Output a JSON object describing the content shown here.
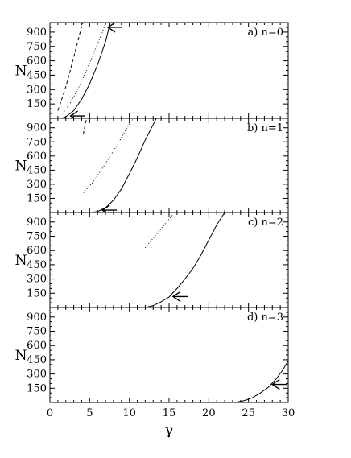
{
  "chart_data": {
    "type": "line",
    "x_axis": {
      "label": "γ",
      "range": [
        0,
        30
      ],
      "ticks": [
        0,
        5,
        10,
        15,
        20,
        25,
        30
      ]
    },
    "panels": [
      {
        "label": "a) n=0",
        "ylabel": "N",
        "y_range": [
          0,
          1000
        ],
        "y_ticks": [
          150,
          300,
          450,
          600,
          750,
          900
        ],
        "series": [
          {
            "style": "dashed",
            "points": [
              [
                1.0,
                80
              ],
              [
                1.5,
                200
              ],
              [
                2.0,
                330
              ],
              [
                2.5,
                480
              ],
              [
                3.0,
                640
              ],
              [
                3.5,
                800
              ],
              [
                4.0,
                960
              ],
              [
                4.2,
                1000
              ]
            ]
          },
          {
            "style": "dotted",
            "points": [
              [
                1.6,
                50
              ],
              [
                2.5,
                150
              ],
              [
                3.5,
                300
              ],
              [
                4.5,
                480
              ],
              [
                5.5,
                680
              ],
              [
                6.5,
                880
              ],
              [
                7.0,
                990
              ]
            ]
          },
          {
            "style": "solid",
            "points": [
              [
                1.4,
                0
              ],
              [
                2.0,
                15
              ],
              [
                3.0,
                80
              ],
              [
                4.0,
                200
              ],
              [
                5.0,
                360
              ],
              [
                6.0,
                560
              ],
              [
                7.0,
                800
              ],
              [
                7.6,
                1000
              ]
            ]
          },
          {
            "style": "arrow",
            "points": [
              [
                7.3,
                950
              ]
            ]
          },
          {
            "style": "arrow",
            "points": [
              [
                2.6,
                25
              ]
            ]
          }
        ]
      },
      {
        "label": "b) n=1",
        "ylabel": "N",
        "y_range": [
          0,
          1000
        ],
        "y_ticks": [
          150,
          300,
          450,
          600,
          750,
          900
        ],
        "series": [
          {
            "style": "dashed",
            "points": [
              [
                4.2,
                830
              ],
              [
                4.6,
                1000
              ]
            ]
          },
          {
            "style": "dotted",
            "points": [
              [
                4.2,
                210
              ],
              [
                5.5,
                330
              ],
              [
                7.0,
                520
              ],
              [
                8.5,
                720
              ],
              [
                9.7,
                900
              ],
              [
                10.5,
                1000
              ]
            ]
          },
          {
            "style": "solid",
            "points": [
              [
                5.0,
                0
              ],
              [
                6.0,
                10
              ],
              [
                7.0,
                50
              ],
              [
                8.0,
                130
              ],
              [
                9.0,
                250
              ],
              [
                10.0,
                410
              ],
              [
                11.0,
                580
              ],
              [
                12.0,
                770
              ],
              [
                13.4,
                1000
              ]
            ]
          },
          {
            "style": "arrow",
            "points": [
              [
                6.6,
                25
              ]
            ]
          }
        ]
      },
      {
        "label": "c) n=2",
        "ylabel": "N",
        "y_range": [
          0,
          1000
        ],
        "y_ticks": [
          150,
          300,
          450,
          600,
          750,
          900
        ],
        "series": [
          {
            "style": "dotted",
            "points": [
              [
                12.0,
                630
              ],
              [
                13.0,
                730
              ],
              [
                14.2,
                850
              ],
              [
                15.5,
                980
              ]
            ]
          },
          {
            "style": "solid",
            "points": [
              [
                12.0,
                0
              ],
              [
                13.0,
                20
              ],
              [
                14.0,
                60
              ],
              [
                15.0,
                110
              ],
              [
                16.0,
                200
              ],
              [
                17.0,
                300
              ],
              [
                18.0,
                410
              ],
              [
                19.0,
                550
              ],
              [
                20.0,
                710
              ],
              [
                21.0,
                870
              ],
              [
                22.0,
                1000
              ]
            ]
          },
          {
            "style": "arrow",
            "points": [
              [
                15.5,
                115
              ]
            ]
          }
        ]
      },
      {
        "label": "d) n=3",
        "ylabel": "N",
        "y_range": [
          0,
          1000
        ],
        "y_ticks": [
          150,
          300,
          450,
          600,
          750,
          900
        ],
        "series": [
          {
            "style": "solid",
            "points": [
              [
                22.0,
                0
              ],
              [
                23.5,
                3
              ],
              [
                24.5,
                20
              ],
              [
                25.5,
                50
              ],
              [
                26.5,
                100
              ],
              [
                27.5,
                160
              ],
              [
                28.5,
                250
              ],
              [
                29.3,
                340
              ],
              [
                30.0,
                440
              ]
            ]
          },
          {
            "style": "arrow",
            "points": [
              [
                28.0,
                190
              ]
            ]
          }
        ]
      }
    ]
  }
}
